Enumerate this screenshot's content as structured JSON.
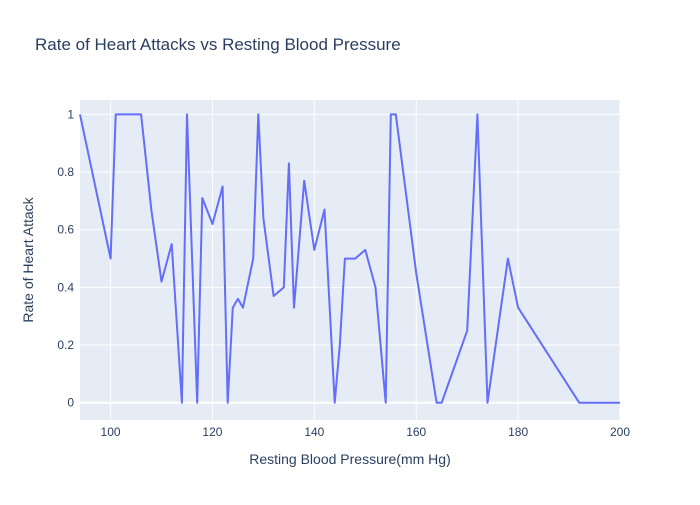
{
  "chart_data": {
    "type": "line",
    "title": "Rate of Heart Attacks vs Resting Blood Pressure",
    "xlabel": "Resting Blood Pressure(mm Hg)",
    "ylabel": "Rate of Heart Attack",
    "xlim": [
      94,
      200
    ],
    "ylim": [
      -0.06,
      1.05
    ],
    "x_ticks": [
      100,
      120,
      140,
      160,
      180,
      200
    ],
    "y_ticks": [
      0,
      0.2,
      0.4,
      0.6,
      0.8,
      1
    ],
    "grid": true,
    "legend": "none",
    "line_color": "#636efa",
    "plot_bg": "#e5ecf6",
    "series": [
      {
        "x": [
          94,
          100,
          101,
          102,
          104,
          105,
          106,
          108,
          110,
          112,
          114,
          115,
          117,
          118,
          120,
          122,
          123,
          124,
          125,
          126,
          128,
          129,
          130,
          132,
          134,
          135,
          136,
          138,
          140,
          142,
          144,
          145,
          146,
          148,
          150,
          152,
          154,
          155,
          156,
          160,
          164,
          165,
          170,
          172,
          174,
          178,
          180,
          192,
          200
        ],
        "y": [
          1.0,
          0.5,
          1.0,
          1.0,
          1.0,
          1.0,
          1.0,
          0.67,
          0.42,
          0.55,
          0.0,
          1.0,
          0.0,
          0.71,
          0.62,
          0.75,
          0.0,
          0.33,
          0.36,
          0.33,
          0.5,
          1.0,
          0.64,
          0.37,
          0.4,
          0.83,
          0.33,
          0.77,
          0.53,
          0.67,
          0.0,
          0.2,
          0.5,
          0.5,
          0.53,
          0.4,
          0.0,
          1.0,
          1.0,
          0.45,
          0.0,
          0.0,
          0.25,
          1.0,
          0.0,
          0.5,
          0.33,
          0.0,
          0.0
        ]
      }
    ]
  }
}
